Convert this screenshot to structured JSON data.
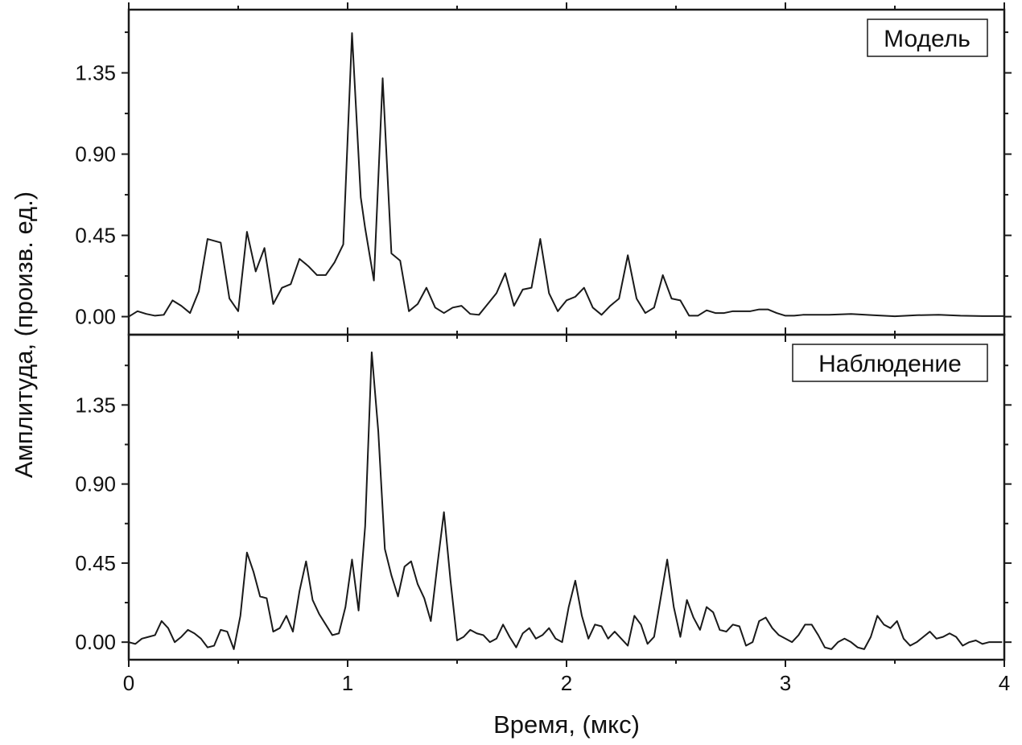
{
  "chart_data": {
    "type": "line",
    "xlabel": "Время, (мкс)",
    "ylabel": "Амплитуда, (произв. ед.)",
    "xlim": [
      0,
      4
    ],
    "x_ticks": [
      "0",
      "1",
      "2",
      "3",
      "4"
    ],
    "y_ticks": [
      "0.00",
      "0.45",
      "0.90",
      "1.35"
    ],
    "line_color": "#1a1a1a",
    "grid": false,
    "panels": [
      {
        "name": "Модель",
        "ylim": [
          -0.1,
          1.7
        ],
        "x": [
          0.0,
          0.04,
          0.08,
          0.12,
          0.16,
          0.2,
          0.24,
          0.28,
          0.32,
          0.36,
          0.42,
          0.46,
          0.5,
          0.54,
          0.58,
          0.62,
          0.66,
          0.7,
          0.74,
          0.78,
          0.82,
          0.86,
          0.9,
          0.94,
          0.98,
          1.02,
          1.06,
          1.08,
          1.12,
          1.16,
          1.2,
          1.24,
          1.28,
          1.32,
          1.36,
          1.4,
          1.44,
          1.48,
          1.52,
          1.56,
          1.6,
          1.64,
          1.68,
          1.72,
          1.76,
          1.8,
          1.84,
          1.88,
          1.92,
          1.96,
          2.0,
          2.04,
          2.08,
          2.12,
          2.16,
          2.2,
          2.24,
          2.28,
          2.32,
          2.36,
          2.4,
          2.44,
          2.48,
          2.52,
          2.56,
          2.6,
          2.64,
          2.68,
          2.72,
          2.76,
          2.8,
          2.84,
          2.88,
          2.92,
          2.96,
          3.0,
          3.04,
          3.08,
          3.12,
          3.16,
          3.2,
          3.3,
          3.4,
          3.5,
          3.6,
          3.7,
          3.8,
          3.9,
          4.0
        ],
        "y": [
          0.0,
          0.03,
          0.015,
          0.005,
          0.01,
          0.09,
          0.06,
          0.02,
          0.14,
          0.43,
          0.41,
          0.1,
          0.03,
          0.47,
          0.25,
          0.38,
          0.07,
          0.16,
          0.18,
          0.32,
          0.28,
          0.23,
          0.23,
          0.3,
          0.4,
          1.57,
          0.66,
          0.49,
          0.2,
          1.32,
          0.35,
          0.31,
          0.03,
          0.07,
          0.16,
          0.05,
          0.02,
          0.05,
          0.06,
          0.015,
          0.01,
          0.07,
          0.13,
          0.24,
          0.06,
          0.15,
          0.16,
          0.43,
          0.13,
          0.03,
          0.09,
          0.11,
          0.16,
          0.05,
          0.01,
          0.06,
          0.1,
          0.34,
          0.1,
          0.02,
          0.05,
          0.23,
          0.1,
          0.09,
          0.005,
          0.005,
          0.035,
          0.02,
          0.02,
          0.03,
          0.03,
          0.03,
          0.04,
          0.04,
          0.02,
          0.005,
          0.005,
          0.01,
          0.01,
          0.01,
          0.01,
          0.015,
          0.008,
          0.002,
          0.008,
          0.01,
          0.005,
          0.003,
          0.003
        ]
      },
      {
        "name": "Наблюдение",
        "ylim": [
          -0.1,
          1.75
        ],
        "x": [
          0.0,
          0.03,
          0.06,
          0.09,
          0.12,
          0.15,
          0.18,
          0.21,
          0.24,
          0.27,
          0.3,
          0.33,
          0.36,
          0.39,
          0.42,
          0.45,
          0.48,
          0.51,
          0.54,
          0.57,
          0.6,
          0.63,
          0.66,
          0.69,
          0.72,
          0.75,
          0.78,
          0.81,
          0.84,
          0.87,
          0.9,
          0.93,
          0.96,
          0.99,
          1.02,
          1.05,
          1.08,
          1.11,
          1.14,
          1.17,
          1.2,
          1.23,
          1.26,
          1.29,
          1.32,
          1.35,
          1.38,
          1.41,
          1.44,
          1.47,
          1.5,
          1.53,
          1.56,
          1.59,
          1.62,
          1.65,
          1.68,
          1.71,
          1.74,
          1.77,
          1.8,
          1.83,
          1.86,
          1.89,
          1.92,
          1.95,
          1.98,
          2.01,
          2.04,
          2.07,
          2.1,
          2.13,
          2.16,
          2.19,
          2.22,
          2.25,
          2.28,
          2.31,
          2.34,
          2.37,
          2.4,
          2.43,
          2.46,
          2.49,
          2.52,
          2.55,
          2.58,
          2.61,
          2.64,
          2.67,
          2.7,
          2.73,
          2.76,
          2.79,
          2.82,
          2.85,
          2.88,
          2.91,
          2.94,
          2.97,
          3.0,
          3.03,
          3.06,
          3.09,
          3.12,
          3.15,
          3.18,
          3.21,
          3.24,
          3.27,
          3.3,
          3.33,
          3.36,
          3.39,
          3.42,
          3.45,
          3.48,
          3.51,
          3.54,
          3.57,
          3.6,
          3.63,
          3.66,
          3.69,
          3.72,
          3.75,
          3.78,
          3.81,
          3.84,
          3.87,
          3.9,
          3.93,
          3.96,
          3.99
        ],
        "y": [
          0.0,
          -0.01,
          0.02,
          0.03,
          0.04,
          0.12,
          0.08,
          0.0,
          0.03,
          0.07,
          0.05,
          0.02,
          -0.03,
          -0.02,
          0.07,
          0.06,
          -0.04,
          0.15,
          0.51,
          0.4,
          0.26,
          0.25,
          0.06,
          0.08,
          0.15,
          0.06,
          0.29,
          0.46,
          0.24,
          0.16,
          0.1,
          0.04,
          0.05,
          0.2,
          0.47,
          0.18,
          0.66,
          1.65,
          1.2,
          0.53,
          0.38,
          0.26,
          0.43,
          0.46,
          0.33,
          0.25,
          0.12,
          0.44,
          0.74,
          0.35,
          0.01,
          0.03,
          0.07,
          0.05,
          0.04,
          0.0,
          0.02,
          0.1,
          0.03,
          -0.03,
          0.05,
          0.08,
          0.02,
          0.04,
          0.08,
          0.02,
          0.0,
          0.2,
          0.35,
          0.15,
          0.02,
          0.1,
          0.09,
          0.02,
          0.06,
          0.02,
          -0.02,
          0.15,
          0.1,
          -0.01,
          0.03,
          0.25,
          0.47,
          0.2,
          0.03,
          0.24,
          0.14,
          0.07,
          0.2,
          0.17,
          0.07,
          0.06,
          0.1,
          0.09,
          -0.02,
          0.0,
          0.12,
          0.14,
          0.08,
          0.04,
          0.02,
          0.0,
          0.04,
          0.1,
          0.1,
          0.04,
          -0.03,
          -0.04,
          0.0,
          0.02,
          0.0,
          -0.03,
          -0.04,
          0.03,
          0.15,
          0.1,
          0.08,
          0.12,
          0.02,
          -0.02,
          0.0,
          0.03,
          0.06,
          0.02,
          0.03,
          0.05,
          0.03,
          -0.02,
          0.0,
          0.01,
          -0.01,
          0.0,
          0.0,
          0.0
        ]
      }
    ]
  }
}
